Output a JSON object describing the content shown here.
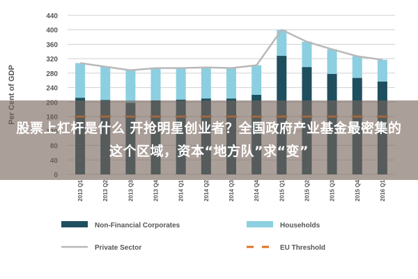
{
  "overlay": {
    "headline": "股票上杠杆是什么 开抢明星创业者？全国政府产业基金最密集的这个区域，资本“地方队”求“变”"
  },
  "chart_data": {
    "type": "bar",
    "stacked": true,
    "categories": [
      "2013 Q1",
      "2013 Q2",
      "2013 Q3",
      "2013 Q4",
      "2014 Q1",
      "2014 Q2",
      "2014 Q3",
      "2014 Q4",
      "2015 Q1",
      "2015 Q2",
      "2015 Q3",
      "2015 Q4",
      "2016 Q1"
    ],
    "ylabel": "Per Cent of GDP",
    "ylim": [
      0,
      440
    ],
    "yticks": [
      0,
      40,
      80,
      120,
      160,
      200,
      240,
      280,
      320,
      360,
      400,
      440
    ],
    "grid": true,
    "series": [
      {
        "name": "Non-Financial Corporates",
        "kind": "bar",
        "color": "#1e4f5e",
        "values": [
          212,
          206,
          198,
          205,
          207,
          210,
          210,
          220,
          328,
          297,
          278,
          267,
          257
        ]
      },
      {
        "name": "Households",
        "kind": "bar",
        "color": "#8ccfe0",
        "values": [
          96,
          92,
          90,
          89,
          87,
          86,
          84,
          82,
          72,
          70,
          68,
          60,
          60
        ]
      },
      {
        "name": "Private Sector",
        "kind": "line",
        "color": "#b8b8b8",
        "values": [
          308,
          298,
          288,
          294,
          294,
          296,
          294,
          302,
          400,
          367,
          346,
          327,
          317
        ]
      },
      {
        "name": "EU Threshold",
        "kind": "dashed",
        "color": "#e07020",
        "values": [
          160,
          160,
          160,
          160,
          160,
          160,
          160,
          160,
          160,
          160,
          160,
          160,
          160
        ]
      }
    ],
    "legend_position": "bottom"
  }
}
